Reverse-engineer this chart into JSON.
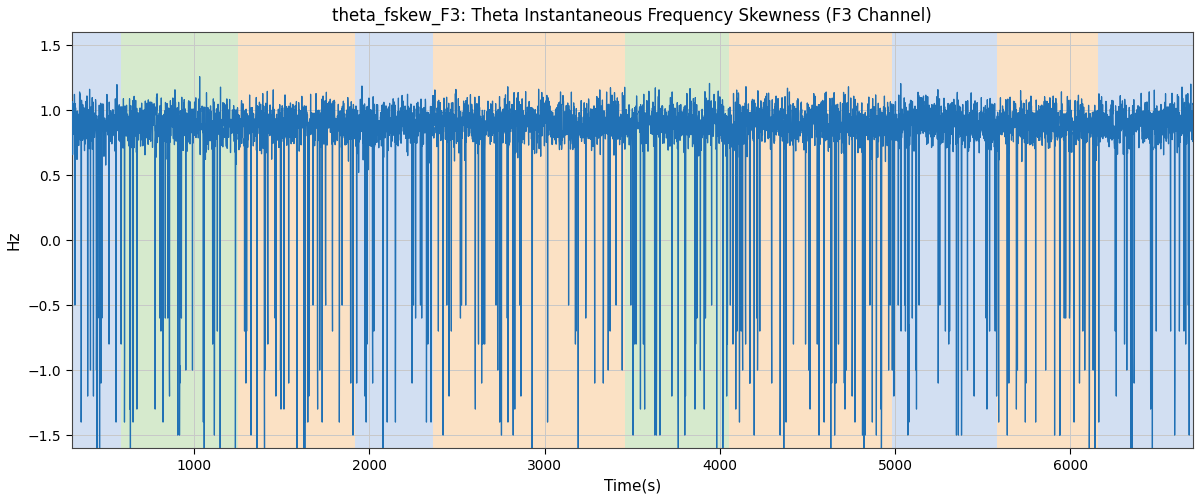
{
  "title": "theta_fskew_F3: Theta Instantaneous Frequency Skewness (F3 Channel)",
  "xlabel": "Time(s)",
  "ylabel": "Hz",
  "ylim": [
    -1.6,
    1.6
  ],
  "xlim": [
    300,
    6700
  ],
  "yticks": [
    -1.5,
    -1.0,
    -0.5,
    0.0,
    0.5,
    1.0,
    1.5
  ],
  "xticks": [
    1000,
    2000,
    3000,
    4000,
    5000,
    6000
  ],
  "line_color": "#2171b5",
  "line_width": 0.9,
  "background_color": "#ffffff",
  "grid_color": "#c8c8c8",
  "bands": [
    {
      "start": 300,
      "end": 580,
      "color": "#aec6e8",
      "alpha": 0.55
    },
    {
      "start": 580,
      "end": 1250,
      "color": "#b5d9a5",
      "alpha": 0.55
    },
    {
      "start": 1250,
      "end": 1920,
      "color": "#f9c995",
      "alpha": 0.55
    },
    {
      "start": 1920,
      "end": 2360,
      "color": "#aec6e8",
      "alpha": 0.55
    },
    {
      "start": 2360,
      "end": 3460,
      "color": "#f9c995",
      "alpha": 0.55
    },
    {
      "start": 3460,
      "end": 4050,
      "color": "#b5d9a5",
      "alpha": 0.55
    },
    {
      "start": 4050,
      "end": 4490,
      "color": "#f9c995",
      "alpha": 0.55
    },
    {
      "start": 4490,
      "end": 4980,
      "color": "#f9c995",
      "alpha": 0.55
    },
    {
      "start": 4980,
      "end": 5580,
      "color": "#aec6e8",
      "alpha": 0.55
    },
    {
      "start": 5580,
      "end": 6160,
      "color": "#f9c995",
      "alpha": 0.55
    },
    {
      "start": 6160,
      "end": 6700,
      "color": "#aec6e8",
      "alpha": 0.55
    }
  ],
  "figsize": [
    12.0,
    5.0
  ],
  "dpi": 100
}
